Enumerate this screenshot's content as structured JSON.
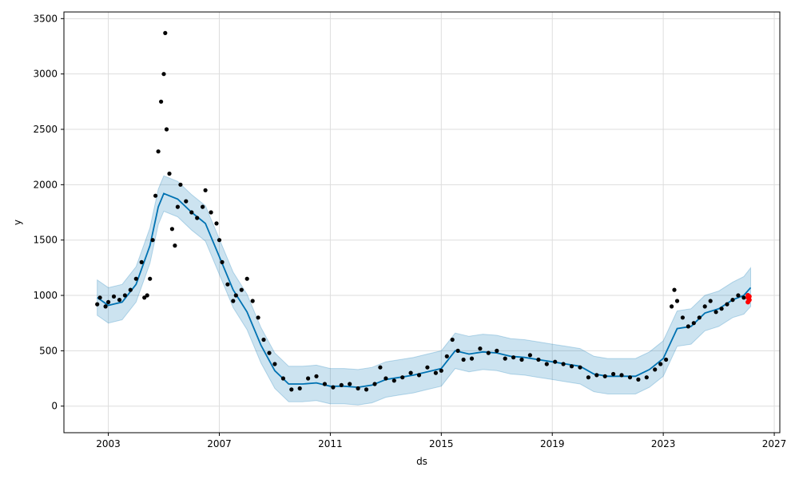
{
  "chart_data": {
    "type": "line",
    "title": "",
    "xlabel": "ds",
    "ylabel": "y",
    "xlim": [
      2001.4,
      2027.2
    ],
    "ylim": [
      -240,
      3560
    ],
    "x_ticks": [
      2003,
      2007,
      2011,
      2015,
      2019,
      2023,
      2027
    ],
    "x_tick_labels": [
      "2003",
      "2007",
      "2011",
      "2015",
      "2019",
      "2023",
      "2027"
    ],
    "y_ticks": [
      0,
      500,
      1000,
      1500,
      2000,
      2500,
      3000,
      3500
    ],
    "y_tick_labels": [
      "0",
      "500",
      "1000",
      "1500",
      "2000",
      "2500",
      "3000",
      "3500"
    ],
    "grid": true,
    "colors": {
      "observed": "#000000",
      "forecast_line": "#0072b2",
      "uncertainty_band": "#0072b2",
      "highlight_points": "#ff0000"
    },
    "series": [
      {
        "kind": "observed",
        "points": [
          [
            2002.6,
            920
          ],
          [
            2002.7,
            980
          ],
          [
            2002.9,
            900
          ],
          [
            2003.0,
            940
          ],
          [
            2003.2,
            990
          ],
          [
            2003.4,
            960
          ],
          [
            2003.6,
            1000
          ],
          [
            2003.8,
            1050
          ],
          [
            2004.0,
            1150
          ],
          [
            2004.2,
            1300
          ],
          [
            2004.3,
            980
          ],
          [
            2004.4,
            1000
          ],
          [
            2004.5,
            1150
          ],
          [
            2004.6,
            1500
          ],
          [
            2004.7,
            1900
          ],
          [
            2004.8,
            2300
          ],
          [
            2004.9,
            2750
          ],
          [
            2005.0,
            3000
          ],
          [
            2005.05,
            3370
          ],
          [
            2005.1,
            2500
          ],
          [
            2005.2,
            2100
          ],
          [
            2005.3,
            1600
          ],
          [
            2005.4,
            1450
          ],
          [
            2005.5,
            1800
          ],
          [
            2005.6,
            2000
          ],
          [
            2005.8,
            1850
          ],
          [
            2006.0,
            1750
          ],
          [
            2006.2,
            1700
          ],
          [
            2006.4,
            1800
          ],
          [
            2006.5,
            1950
          ],
          [
            2006.7,
            1750
          ],
          [
            2006.9,
            1650
          ],
          [
            2007.0,
            1500
          ],
          [
            2007.1,
            1300
          ],
          [
            2007.3,
            1100
          ],
          [
            2007.5,
            950
          ],
          [
            2007.6,
            1000
          ],
          [
            2007.8,
            1050
          ],
          [
            2008.0,
            1150
          ],
          [
            2008.2,
            950
          ],
          [
            2008.4,
            800
          ],
          [
            2008.6,
            600
          ],
          [
            2008.8,
            480
          ],
          [
            2009.0,
            380
          ],
          [
            2009.3,
            250
          ],
          [
            2009.6,
            150
          ],
          [
            2009.9,
            160
          ],
          [
            2010.2,
            250
          ],
          [
            2010.5,
            270
          ],
          [
            2010.8,
            200
          ],
          [
            2011.1,
            170
          ],
          [
            2011.4,
            190
          ],
          [
            2011.7,
            200
          ],
          [
            2012.0,
            160
          ],
          [
            2012.3,
            150
          ],
          [
            2012.6,
            200
          ],
          [
            2012.8,
            350
          ],
          [
            2013.0,
            250
          ],
          [
            2013.3,
            230
          ],
          [
            2013.6,
            260
          ],
          [
            2013.9,
            300
          ],
          [
            2014.2,
            280
          ],
          [
            2014.5,
            350
          ],
          [
            2014.8,
            300
          ],
          [
            2015.0,
            320
          ],
          [
            2015.2,
            450
          ],
          [
            2015.4,
            600
          ],
          [
            2015.6,
            500
          ],
          [
            2015.8,
            420
          ],
          [
            2016.1,
            430
          ],
          [
            2016.4,
            520
          ],
          [
            2016.7,
            480
          ],
          [
            2017.0,
            500
          ],
          [
            2017.3,
            430
          ],
          [
            2017.6,
            440
          ],
          [
            2017.9,
            420
          ],
          [
            2018.2,
            460
          ],
          [
            2018.5,
            420
          ],
          [
            2018.8,
            380
          ],
          [
            2019.1,
            400
          ],
          [
            2019.4,
            380
          ],
          [
            2019.7,
            360
          ],
          [
            2020.0,
            350
          ],
          [
            2020.3,
            260
          ],
          [
            2020.6,
            280
          ],
          [
            2020.9,
            270
          ],
          [
            2021.2,
            290
          ],
          [
            2021.5,
            280
          ],
          [
            2021.8,
            260
          ],
          [
            2022.1,
            240
          ],
          [
            2022.4,
            260
          ],
          [
            2022.7,
            330
          ],
          [
            2022.9,
            380
          ],
          [
            2023.1,
            420
          ],
          [
            2023.3,
            900
          ],
          [
            2023.4,
            1050
          ],
          [
            2023.5,
            950
          ],
          [
            2023.7,
            800
          ],
          [
            2023.9,
            720
          ],
          [
            2024.1,
            750
          ],
          [
            2024.3,
            800
          ],
          [
            2024.5,
            900
          ],
          [
            2024.7,
            950
          ],
          [
            2024.9,
            850
          ],
          [
            2025.1,
            880
          ],
          [
            2025.3,
            920
          ],
          [
            2025.5,
            960
          ],
          [
            2025.7,
            1000
          ],
          [
            2025.9,
            980
          ]
        ]
      },
      {
        "kind": "forecast_line",
        "points": [
          [
            2002.6,
            980
          ],
          [
            2003.0,
            910
          ],
          [
            2003.5,
            940
          ],
          [
            2004.0,
            1100
          ],
          [
            2004.5,
            1450
          ],
          [
            2004.8,
            1800
          ],
          [
            2005.0,
            1920
          ],
          [
            2005.5,
            1870
          ],
          [
            2006.0,
            1750
          ],
          [
            2006.5,
            1650
          ],
          [
            2007.0,
            1350
          ],
          [
            2007.5,
            1050
          ],
          [
            2008.0,
            850
          ],
          [
            2008.5,
            550
          ],
          [
            2009.0,
            320
          ],
          [
            2009.5,
            200
          ],
          [
            2010.0,
            200
          ],
          [
            2010.5,
            210
          ],
          [
            2011.0,
            180
          ],
          [
            2011.5,
            180
          ],
          [
            2012.0,
            170
          ],
          [
            2012.5,
            190
          ],
          [
            2013.0,
            240
          ],
          [
            2013.5,
            260
          ],
          [
            2014.0,
            280
          ],
          [
            2014.5,
            310
          ],
          [
            2015.0,
            340
          ],
          [
            2015.5,
            500
          ],
          [
            2016.0,
            470
          ],
          [
            2016.5,
            490
          ],
          [
            2017.0,
            480
          ],
          [
            2017.5,
            450
          ],
          [
            2018.0,
            440
          ],
          [
            2018.5,
            420
          ],
          [
            2019.0,
            400
          ],
          [
            2019.5,
            380
          ],
          [
            2020.0,
            360
          ],
          [
            2020.5,
            290
          ],
          [
            2021.0,
            270
          ],
          [
            2021.5,
            270
          ],
          [
            2022.0,
            270
          ],
          [
            2022.5,
            330
          ],
          [
            2023.0,
            430
          ],
          [
            2023.5,
            700
          ],
          [
            2024.0,
            720
          ],
          [
            2024.5,
            840
          ],
          [
            2025.0,
            880
          ],
          [
            2025.5,
            960
          ],
          [
            2025.9,
            1000
          ],
          [
            2026.15,
            1070
          ]
        ]
      },
      {
        "kind": "uncertainty_upper",
        "points": [
          [
            2002.6,
            1140
          ],
          [
            2003.0,
            1070
          ],
          [
            2003.5,
            1100
          ],
          [
            2004.0,
            1260
          ],
          [
            2004.5,
            1610
          ],
          [
            2004.8,
            1960
          ],
          [
            2005.0,
            2080
          ],
          [
            2005.5,
            2030
          ],
          [
            2006.0,
            1910
          ],
          [
            2006.5,
            1810
          ],
          [
            2007.0,
            1510
          ],
          [
            2007.5,
            1210
          ],
          [
            2008.0,
            1010
          ],
          [
            2008.5,
            710
          ],
          [
            2009.0,
            480
          ],
          [
            2009.5,
            360
          ],
          [
            2010.0,
            360
          ],
          [
            2010.5,
            370
          ],
          [
            2011.0,
            340
          ],
          [
            2011.5,
            340
          ],
          [
            2012.0,
            330
          ],
          [
            2012.5,
            350
          ],
          [
            2013.0,
            400
          ],
          [
            2013.5,
            420
          ],
          [
            2014.0,
            440
          ],
          [
            2014.5,
            470
          ],
          [
            2015.0,
            500
          ],
          [
            2015.5,
            660
          ],
          [
            2016.0,
            630
          ],
          [
            2016.5,
            650
          ],
          [
            2017.0,
            640
          ],
          [
            2017.5,
            610
          ],
          [
            2018.0,
            600
          ],
          [
            2018.5,
            580
          ],
          [
            2019.0,
            560
          ],
          [
            2019.5,
            540
          ],
          [
            2020.0,
            520
          ],
          [
            2020.5,
            450
          ],
          [
            2021.0,
            430
          ],
          [
            2021.5,
            430
          ],
          [
            2022.0,
            430
          ],
          [
            2022.5,
            490
          ],
          [
            2023.0,
            590
          ],
          [
            2023.5,
            860
          ],
          [
            2024.0,
            880
          ],
          [
            2024.5,
            1000
          ],
          [
            2025.0,
            1040
          ],
          [
            2025.5,
            1120
          ],
          [
            2025.9,
            1170
          ],
          [
            2026.15,
            1250
          ]
        ]
      },
      {
        "kind": "uncertainty_lower",
        "points": [
          [
            2002.6,
            820
          ],
          [
            2003.0,
            750
          ],
          [
            2003.5,
            780
          ],
          [
            2004.0,
            940
          ],
          [
            2004.5,
            1290
          ],
          [
            2004.8,
            1640
          ],
          [
            2005.0,
            1760
          ],
          [
            2005.5,
            1710
          ],
          [
            2006.0,
            1590
          ],
          [
            2006.5,
            1490
          ],
          [
            2007.0,
            1190
          ],
          [
            2007.5,
            890
          ],
          [
            2008.0,
            690
          ],
          [
            2008.5,
            390
          ],
          [
            2009.0,
            160
          ],
          [
            2009.5,
            40
          ],
          [
            2010.0,
            40
          ],
          [
            2010.5,
            50
          ],
          [
            2011.0,
            20
          ],
          [
            2011.5,
            20
          ],
          [
            2012.0,
            10
          ],
          [
            2012.5,
            30
          ],
          [
            2013.0,
            80
          ],
          [
            2013.5,
            100
          ],
          [
            2014.0,
            120
          ],
          [
            2014.5,
            150
          ],
          [
            2015.0,
            180
          ],
          [
            2015.5,
            340
          ],
          [
            2016.0,
            310
          ],
          [
            2016.5,
            330
          ],
          [
            2017.0,
            320
          ],
          [
            2017.5,
            290
          ],
          [
            2018.0,
            280
          ],
          [
            2018.5,
            260
          ],
          [
            2019.0,
            240
          ],
          [
            2019.5,
            220
          ],
          [
            2020.0,
            200
          ],
          [
            2020.5,
            130
          ],
          [
            2021.0,
            110
          ],
          [
            2021.5,
            110
          ],
          [
            2022.0,
            110
          ],
          [
            2022.5,
            170
          ],
          [
            2023.0,
            270
          ],
          [
            2023.5,
            540
          ],
          [
            2024.0,
            560
          ],
          [
            2024.5,
            680
          ],
          [
            2025.0,
            720
          ],
          [
            2025.5,
            800
          ],
          [
            2025.9,
            830
          ],
          [
            2026.15,
            900
          ]
        ]
      },
      {
        "kind": "highlight",
        "points": [
          [
            2026.05,
            940
          ],
          [
            2026.05,
            980
          ],
          [
            2026.05,
            1000
          ],
          [
            2026.1,
            960
          ],
          [
            2026.1,
            990
          ]
        ]
      }
    ]
  }
}
